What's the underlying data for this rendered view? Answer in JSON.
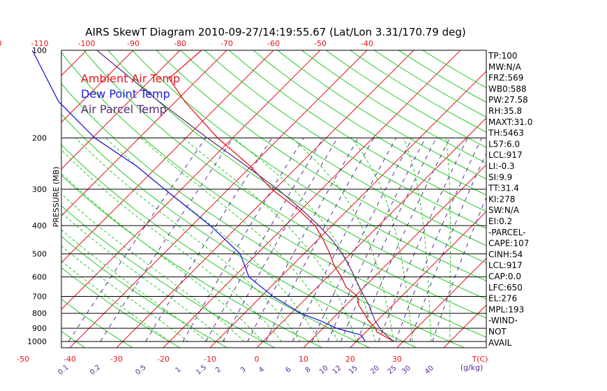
{
  "title": "AIRS SkewT Diagram 2010-09-27/14:19:55.67 (Lat/Lon 3.31/170.79 deg)",
  "ylabel": "PRESSURE (MB)",
  "chart_data": {
    "type": "line",
    "title": "AIRS SkewT Diagram 2010-09-27/14:19:55.67 (Lat/Lon 3.31/170.79 deg)",
    "ylabel": "PRESSURE (MB)",
    "xlabel": "T(C)",
    "y_scale": "log-pressure",
    "pressure_range": [
      1050,
      100
    ],
    "pressure_ticks": [
      100,
      200,
      300,
      400,
      500,
      600,
      700,
      800,
      900,
      1000
    ],
    "bottom_temp_ticks": [
      -50,
      -40,
      -30,
      -20,
      -10,
      0,
      10,
      20,
      30
    ],
    "top_temp_ticks": [
      -120,
      -110,
      -100,
      -90,
      -80,
      -70,
      -60,
      -50,
      -40
    ],
    "mixing_ratio_labels": [
      "0.1",
      "0.2",
      "0.5",
      "1",
      "1.5",
      "2",
      "3",
      "4",
      "6",
      "8",
      "10",
      "12",
      "15",
      "20",
      "25",
      "30",
      "40"
    ],
    "mixing_ratio_unit": "(g/kg)",
    "legend": [
      {
        "name": "Ambient Air Temp",
        "color": "#e8141e"
      },
      {
        "name": "Dew Point Temp",
        "color": "#1a1adc"
      },
      {
        "name": "Air Parcel Temp",
        "color": "#5a2a78"
      }
    ],
    "series": [
      {
        "name": "Ambient Air Temp",
        "color": "#e8141e",
        "points": [
          {
            "p": 1000,
            "t": 28.0
          },
          {
            "p": 950,
            "t": 24.2
          },
          {
            "p": 925,
            "t": 22.2
          },
          {
            "p": 900,
            "t": 21.3
          },
          {
            "p": 850,
            "t": 18.2
          },
          {
            "p": 800,
            "t": 15.6
          },
          {
            "p": 750,
            "t": 12.7
          },
          {
            "p": 700,
            "t": 10.6
          },
          {
            "p": 650,
            "t": 6.1
          },
          {
            "p": 600,
            "t": 3.0
          },
          {
            "p": 550,
            "t": -0.9
          },
          {
            "p": 500,
            "t": -4.4
          },
          {
            "p": 450,
            "t": -8.6
          },
          {
            "p": 400,
            "t": -13.6
          },
          {
            "p": 350,
            "t": -21.0
          },
          {
            "p": 300,
            "t": -30.7
          },
          {
            "p": 250,
            "t": -40.2
          },
          {
            "p": 200,
            "t": -53.2
          },
          {
            "p": 150,
            "t": -68.0
          },
          {
            "p": 125,
            "t": -76.3
          },
          {
            "p": 100,
            "t": -75.4
          }
        ]
      },
      {
        "name": "Dew Point Temp",
        "color": "#1a1adc",
        "points": [
          {
            "p": 1000,
            "t": 21.9
          },
          {
            "p": 950,
            "t": 19.6
          },
          {
            "p": 900,
            "t": 12.9
          },
          {
            "p": 850,
            "t": 8.0
          },
          {
            "p": 800,
            "t": 2.1
          },
          {
            "p": 700,
            "t": -7.5
          },
          {
            "p": 600,
            "t": -16.8
          },
          {
            "p": 500,
            "t": -23.6
          },
          {
            "p": 400,
            "t": -36.0
          },
          {
            "p": 300,
            "t": -53.6
          },
          {
            "p": 250,
            "t": -64.5
          },
          {
            "p": 200,
            "t": -79.5
          },
          {
            "p": 150,
            "t": -95.0
          },
          {
            "p": 100,
            "t": -111.6
          }
        ]
      },
      {
        "name": "Air Parcel Temp",
        "color": "#5a2a78",
        "points": [
          {
            "p": 1000,
            "t": 28.0
          },
          {
            "p": 950,
            "t": 25.0
          },
          {
            "p": 917,
            "t": 23.0
          },
          {
            "p": 900,
            "t": 22.2
          },
          {
            "p": 850,
            "t": 19.6
          },
          {
            "p": 800,
            "t": 17.3
          },
          {
            "p": 750,
            "t": 14.9
          },
          {
            "p": 700,
            "t": 12.0
          },
          {
            "p": 650,
            "t": 9.0
          },
          {
            "p": 600,
            "t": 5.8
          },
          {
            "p": 550,
            "t": 2.3
          },
          {
            "p": 500,
            "t": -1.8
          },
          {
            "p": 450,
            "t": -6.7
          },
          {
            "p": 400,
            "t": -12.8
          },
          {
            "p": 350,
            "t": -20.3
          },
          {
            "p": 300,
            "t": -29.4
          },
          {
            "p": 250,
            "t": -41.0
          },
          {
            "p": 200,
            "t": -55.4
          },
          {
            "p": 150,
            "t": -73.5
          },
          {
            "p": 100,
            "t": -97.8
          }
        ]
      }
    ]
  },
  "indices": [
    "TP:100",
    "MW:N/A",
    "FRZ:569",
    "WB0:588",
    "PW:27.58",
    "RH:35.8",
    "MAXT:31.0",
    "TH:5463",
    "L57:6.0",
    "LCL:917",
    "LI:-0.3",
    "SI:9.9",
    "TT:31.4",
    "KI:278",
    "SW:N/A",
    "EI:0.2",
    "-PARCEL-",
    "CAPE:107",
    "CINH:54",
    "LCL:917",
    "CAP:0.0",
    "LFC:650",
    "EL:276",
    "MPL:193",
    "-WIND-",
    "NOT",
    "AVAIL"
  ],
  "colors": {
    "isotherm": "#e8141e",
    "dry_adiabat": "#28c828",
    "moist_adiabat": "#28c828",
    "mixing_ratio": "#5a2a9a",
    "axis": "#000000"
  }
}
